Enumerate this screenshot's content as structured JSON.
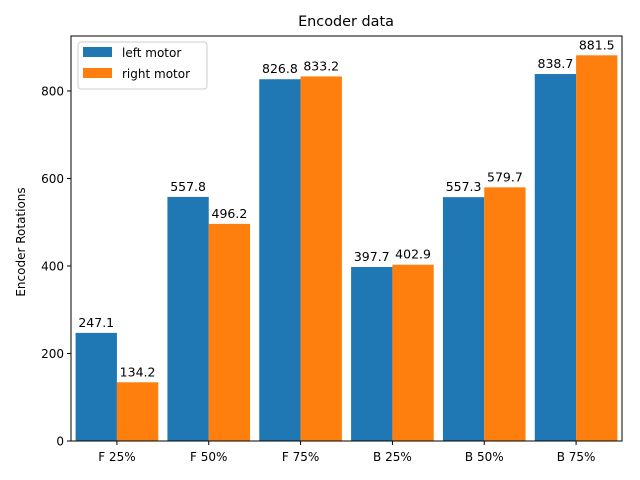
{
  "chart_data": {
    "type": "bar",
    "title": "Encoder data",
    "xlabel": "",
    "ylabel": "Encoder Rotations",
    "categories": [
      "F 25%",
      "F 50%",
      "F 75%",
      "B 25%",
      "B 50%",
      "B 75%"
    ],
    "series": [
      {
        "name": "left motor",
        "color": "#1f77b4",
        "values": [
          247.1,
          557.8,
          826.8,
          397.7,
          557.3,
          838.7
        ]
      },
      {
        "name": "right motor",
        "color": "#ff7f0e",
        "values": [
          134.2,
          496.2,
          833.2,
          402.9,
          579.7,
          881.5
        ]
      }
    ],
    "ylim": [
      0,
      925.6
    ],
    "yticks": [
      0,
      200,
      400,
      600,
      800
    ],
    "grid": false,
    "legend_position": "top-left",
    "data_labels": true
  }
}
